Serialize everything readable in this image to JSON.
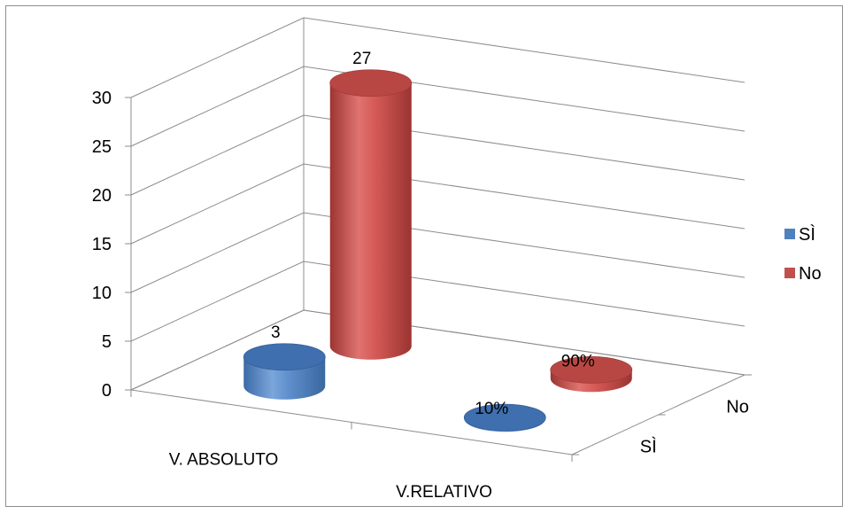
{
  "chart_data": {
    "type": "bar",
    "subtype": "3d-cylinder",
    "title": "",
    "xlabel": "",
    "ylabel": "",
    "categories": [
      "V. ABSOLUTO",
      "V.RELATIVO"
    ],
    "depth_categories": [
      "SÌ",
      "No"
    ],
    "ylim": [
      0,
      30
    ],
    "yticks": [
      0,
      5,
      10,
      15,
      20,
      25,
      30
    ],
    "grid": true,
    "legend": "right",
    "series": [
      {
        "name": "SÌ",
        "color": "#4f81bd",
        "values": [
          3,
          0.1
        ],
        "data_labels": [
          "3",
          "10%"
        ]
      },
      {
        "name": "No",
        "color": "#c0504d",
        "values": [
          27,
          0.9
        ],
        "data_labels": [
          "27",
          "90%"
        ]
      }
    ]
  },
  "legend": {
    "items": [
      {
        "label": "SÌ",
        "color": "#4f81bd"
      },
      {
        "label": "No",
        "color": "#c0504d"
      }
    ]
  }
}
